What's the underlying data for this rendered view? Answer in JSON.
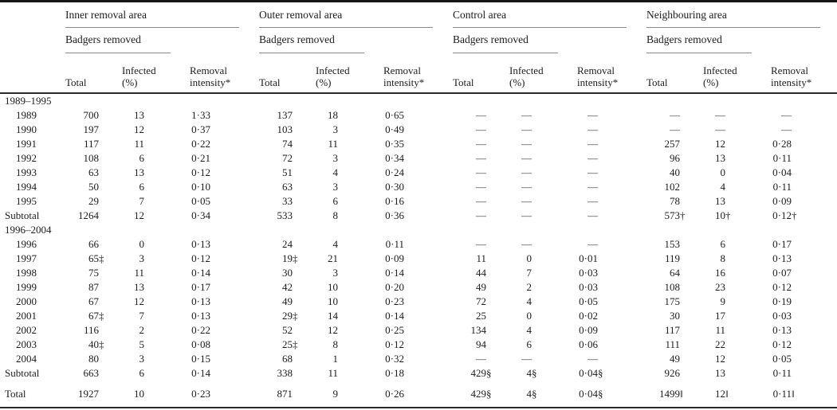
{
  "table": {
    "col_groups": [
      {
        "label": "Inner removal area",
        "sublabel": "Badgers removed"
      },
      {
        "label": "Outer removal area",
        "sublabel": "Badgers removed"
      },
      {
        "label": "Control area",
        "sublabel": "Badgers removed"
      },
      {
        "label": "Neighbouring area",
        "sublabel": "Badgers removed"
      }
    ],
    "col_headers": {
      "total": "Total",
      "infected_line1": "Infected",
      "infected_line2": "(%)",
      "removal_line1": "Removal",
      "removal_line2": "intensity*"
    },
    "missing_marker": "—",
    "footnote_symbols": [
      "*",
      "†",
      "‡",
      "§",
      "‖"
    ],
    "sections": [
      {
        "label": "1989–1995",
        "rows": [
          {
            "label": "1989",
            "type": "year",
            "cells": [
              "700",
              "13",
              "1·33",
              "137",
              "18",
              "0·65",
              "—",
              "—",
              "—",
              "—",
              "—",
              "—"
            ]
          },
          {
            "label": "1990",
            "type": "year",
            "cells": [
              "197",
              "12",
              "0·37",
              "103",
              "3",
              "0·49",
              "—",
              "—",
              "—",
              "—",
              "—",
              "—"
            ]
          },
          {
            "label": "1991",
            "type": "year",
            "cells": [
              "117",
              "11",
              "0·22",
              "74",
              "11",
              "0·35",
              "—",
              "—",
              "—",
              "257",
              "12",
              "0·28"
            ]
          },
          {
            "label": "1992",
            "type": "year",
            "cells": [
              "108",
              "6",
              "0·21",
              "72",
              "3",
              "0·34",
              "—",
              "—",
              "—",
              "96",
              "13",
              "0·11"
            ]
          },
          {
            "label": "1993",
            "type": "year",
            "cells": [
              "63",
              "13",
              "0·12",
              "51",
              "4",
              "0·24",
              "—",
              "—",
              "—",
              "40",
              "0",
              "0·04"
            ]
          },
          {
            "label": "1994",
            "type": "year",
            "cells": [
              "50",
              "6",
              "0·10",
              "63",
              "3",
              "0·30",
              "—",
              "—",
              "—",
              "102",
              "4",
              "0·11"
            ]
          },
          {
            "label": "1995",
            "type": "year",
            "cells": [
              "29",
              "7",
              "0·05",
              "33",
              "6",
              "0·16",
              "—",
              "—",
              "—",
              "78",
              "13",
              "0·09"
            ]
          },
          {
            "label": "Subtotal",
            "type": "subtotal",
            "cells": [
              "1264",
              "12",
              "0·34",
              "533",
              "8",
              "0·36",
              "—",
              "—",
              "—",
              "573†",
              "10†",
              "0·12†"
            ]
          }
        ]
      },
      {
        "label": "1996–2004",
        "rows": [
          {
            "label": "1996",
            "type": "year",
            "cells": [
              "66",
              "0",
              "0·13",
              "24",
              "4",
              "0·11",
              "—",
              "—",
              "—",
              "153",
              "6",
              "0·17"
            ]
          },
          {
            "label": "1997",
            "type": "year",
            "cells": [
              "65‡",
              "3",
              "0·12",
              "19‡",
              "21",
              "0·09",
              "11",
              "0",
              "0·01",
              "119",
              "8",
              "0·13"
            ]
          },
          {
            "label": "1998",
            "type": "year",
            "cells": [
              "75",
              "11",
              "0·14",
              "30",
              "3",
              "0·14",
              "44",
              "7",
              "0·03",
              "64",
              "16",
              "0·07"
            ]
          },
          {
            "label": "1999",
            "type": "year",
            "cells": [
              "87",
              "13",
              "0·17",
              "42",
              "10",
              "0·20",
              "49",
              "2",
              "0·03",
              "108",
              "23",
              "0·12"
            ]
          },
          {
            "label": "2000",
            "type": "year",
            "cells": [
              "67",
              "12",
              "0·13",
              "49",
              "10",
              "0·23",
              "72",
              "4",
              "0·05",
              "175",
              "9",
              "0·19"
            ]
          },
          {
            "label": "2001",
            "type": "year",
            "cells": [
              "67‡",
              "7",
              "0·13",
              "29‡",
              "14",
              "0·14",
              "25",
              "0",
              "0·02",
              "30",
              "17",
              "0·03"
            ]
          },
          {
            "label": "2002",
            "type": "year",
            "cells": [
              "116",
              "2",
              "0·22",
              "52",
              "12",
              "0·25",
              "134",
              "4",
              "0·09",
              "117",
              "11",
              "0·13"
            ]
          },
          {
            "label": "2003",
            "type": "year",
            "cells": [
              "40‡",
              "5",
              "0·08",
              "25‡",
              "8",
              "0·12",
              "94",
              "6",
              "0·06",
              "111",
              "22",
              "0·12"
            ]
          },
          {
            "label": "2004",
            "type": "year",
            "cells": [
              "80",
              "3",
              "0·15",
              "68",
              "1",
              "0·32",
              "—",
              "—",
              "—",
              "49",
              "12",
              "0·05"
            ]
          },
          {
            "label": "Subtotal",
            "type": "subtotal",
            "cells": [
              "663",
              "6",
              "0·14",
              "338",
              "11",
              "0·18",
              "429§",
              "4§",
              "0·04§",
              "926",
              "13",
              "0·11"
            ]
          }
        ]
      }
    ],
    "total_row": {
      "label": "Total",
      "cells": [
        "1927",
        "10",
        "0·23",
        "871",
        "9",
        "0·26",
        "429§",
        "4§",
        "0·04§",
        "1499‖",
        "12‖",
        "0·11‖"
      ]
    }
  }
}
